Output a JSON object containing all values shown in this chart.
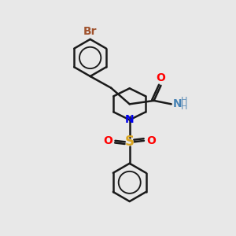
{
  "background_color": "#e8e8e8",
  "bond_color": "#1a1a1a",
  "atom_colors": {
    "Br": "#A0522D",
    "O": "#FF0000",
    "N_amide": "#4682B4",
    "N_pip": "#0000EE",
    "S": "#DAA520",
    "H": "#5B8DB8"
  },
  "bond_width": 1.8,
  "font_size_atoms": 10,
  "font_size_small": 8
}
